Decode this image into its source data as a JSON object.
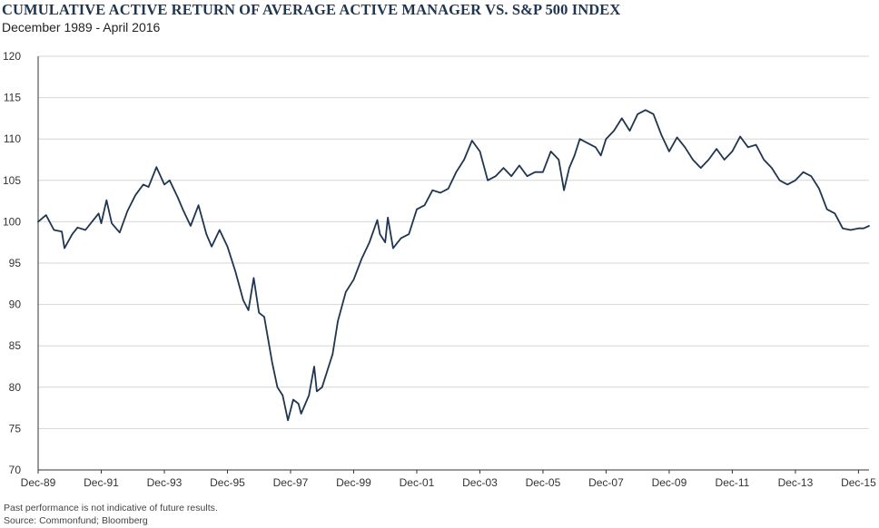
{
  "chart_data": {
    "type": "line",
    "title": "CUMULATIVE ACTIVE RETURN OF AVERAGE ACTIVE MANAGER VS. S&P 500 INDEX",
    "subtitle": "December 1989 - April 2016",
    "xlabel": "",
    "ylabel": "",
    "ylim": [
      70,
      120
    ],
    "y_ticks": [
      70,
      75,
      80,
      85,
      90,
      95,
      100,
      105,
      110,
      115,
      120
    ],
    "xlim": [
      "1989-12",
      "2016-04"
    ],
    "x_ticks": [
      {
        "date": "1989-12",
        "label": "Dec-89"
      },
      {
        "date": "1991-12",
        "label": "Dec-91"
      },
      {
        "date": "1993-12",
        "label": "Dec-93"
      },
      {
        "date": "1995-12",
        "label": "Dec-95"
      },
      {
        "date": "1997-12",
        "label": "Dec-97"
      },
      {
        "date": "1999-12",
        "label": "Dec-99"
      },
      {
        "date": "2001-12",
        "label": "Dec-01"
      },
      {
        "date": "2003-12",
        "label": "Dec-03"
      },
      {
        "date": "2005-12",
        "label": "Dec-05"
      },
      {
        "date": "2007-12",
        "label": "Dec-07"
      },
      {
        "date": "2009-12",
        "label": "Dec-09"
      },
      {
        "date": "2011-12",
        "label": "Dec-11"
      },
      {
        "date": "2013-12",
        "label": "Dec-13"
      },
      {
        "date": "2015-12",
        "label": "Dec-15"
      }
    ],
    "grid": true,
    "line_color": "#1f3550",
    "series": [
      {
        "points": [
          [
            "1989-12",
            100.0
          ],
          [
            "1990-03",
            100.8
          ],
          [
            "1990-06",
            99.0
          ],
          [
            "1990-09",
            98.8
          ],
          [
            "1990-10",
            96.8
          ],
          [
            "1991-01",
            98.5
          ],
          [
            "1991-03",
            99.3
          ],
          [
            "1991-06",
            99.0
          ],
          [
            "1991-09",
            100.2
          ],
          [
            "1991-11",
            101.0
          ],
          [
            "1991-12",
            99.8
          ],
          [
            "1992-02",
            102.6
          ],
          [
            "1992-04",
            99.8
          ],
          [
            "1992-07",
            98.7
          ],
          [
            "1992-10",
            101.3
          ],
          [
            "1993-01",
            103.2
          ],
          [
            "1993-04",
            104.5
          ],
          [
            "1993-06",
            104.2
          ],
          [
            "1993-09",
            106.6
          ],
          [
            "1993-12",
            104.5
          ],
          [
            "1994-02",
            105.0
          ],
          [
            "1994-05",
            103.0
          ],
          [
            "1994-07",
            101.5
          ],
          [
            "1994-10",
            99.5
          ],
          [
            "1995-01",
            102.0
          ],
          [
            "1995-04",
            98.5
          ],
          [
            "1995-06",
            97.0
          ],
          [
            "1995-09",
            99.0
          ],
          [
            "1995-12",
            97.0
          ],
          [
            "1996-03",
            94.0
          ],
          [
            "1996-06",
            90.5
          ],
          [
            "1996-08",
            89.3
          ],
          [
            "1996-10",
            93.2
          ],
          [
            "1996-12",
            89.0
          ],
          [
            "1997-02",
            88.5
          ],
          [
            "1997-05",
            83.0
          ],
          [
            "1997-07",
            80.0
          ],
          [
            "1997-09",
            79.0
          ],
          [
            "1997-11",
            76.0
          ],
          [
            "1998-01",
            78.5
          ],
          [
            "1998-03",
            78.0
          ],
          [
            "1998-04",
            76.8
          ],
          [
            "1998-07",
            79.0
          ],
          [
            "1998-09",
            82.5
          ],
          [
            "1998-10",
            79.5
          ],
          [
            "1998-12",
            80.0
          ],
          [
            "1999-03",
            83.0
          ],
          [
            "1999-04",
            84.0
          ],
          [
            "1999-06",
            88.0
          ],
          [
            "1999-09",
            91.5
          ],
          [
            "1999-12",
            93.0
          ],
          [
            "2000-03",
            95.5
          ],
          [
            "2000-06",
            97.5
          ],
          [
            "2000-09",
            100.2
          ],
          [
            "2000-10",
            98.5
          ],
          [
            "2000-12",
            97.5
          ],
          [
            "2001-01",
            100.5
          ],
          [
            "2001-03",
            96.8
          ],
          [
            "2001-06",
            98.0
          ],
          [
            "2001-09",
            98.5
          ],
          [
            "2001-12",
            101.5
          ],
          [
            "2002-03",
            102.0
          ],
          [
            "2002-06",
            103.8
          ],
          [
            "2002-09",
            103.5
          ],
          [
            "2002-12",
            104.0
          ],
          [
            "2003-03",
            106.0
          ],
          [
            "2003-06",
            107.5
          ],
          [
            "2003-09",
            109.8
          ],
          [
            "2003-12",
            108.5
          ],
          [
            "2004-03",
            105.0
          ],
          [
            "2004-06",
            105.5
          ],
          [
            "2004-09",
            106.5
          ],
          [
            "2004-12",
            105.5
          ],
          [
            "2005-03",
            106.8
          ],
          [
            "2005-06",
            105.5
          ],
          [
            "2005-09",
            106.0
          ],
          [
            "2005-12",
            106.0
          ],
          [
            "2006-03",
            108.5
          ],
          [
            "2006-06",
            107.5
          ],
          [
            "2006-08",
            103.8
          ],
          [
            "2006-10",
            106.5
          ],
          [
            "2006-12",
            108.0
          ],
          [
            "2007-02",
            110.0
          ],
          [
            "2007-05",
            109.5
          ],
          [
            "2007-08",
            109.0
          ],
          [
            "2007-10",
            108.0
          ],
          [
            "2007-12",
            110.0
          ],
          [
            "2008-03",
            111.0
          ],
          [
            "2008-06",
            112.5
          ],
          [
            "2008-09",
            111.0
          ],
          [
            "2008-12",
            113.0
          ],
          [
            "2009-03",
            113.5
          ],
          [
            "2009-06",
            113.0
          ],
          [
            "2009-09",
            110.5
          ],
          [
            "2009-12",
            108.5
          ],
          [
            "2010-03",
            110.2
          ],
          [
            "2010-06",
            109.0
          ],
          [
            "2010-09",
            107.5
          ],
          [
            "2010-12",
            106.5
          ],
          [
            "2011-03",
            107.5
          ],
          [
            "2011-06",
            108.8
          ],
          [
            "2011-09",
            107.5
          ],
          [
            "2011-12",
            108.5
          ],
          [
            "2012-03",
            110.3
          ],
          [
            "2012-06",
            109.0
          ],
          [
            "2012-09",
            109.3
          ],
          [
            "2012-12",
            107.5
          ],
          [
            "2013-03",
            106.5
          ],
          [
            "2013-06",
            105.0
          ],
          [
            "2013-09",
            104.5
          ],
          [
            "2013-12",
            105.0
          ],
          [
            "2014-03",
            106.0
          ],
          [
            "2014-06",
            105.5
          ],
          [
            "2014-09",
            104.0
          ],
          [
            "2014-12",
            101.5
          ],
          [
            "2015-03",
            101.0
          ],
          [
            "2015-06",
            99.2
          ],
          [
            "2015-09",
            99.0
          ],
          [
            "2015-12",
            99.2
          ],
          [
            "2016-02",
            99.2
          ],
          [
            "2016-04",
            99.5
          ]
        ]
      }
    ]
  },
  "footnotes": {
    "disclaimer": "Past performance is not indicative of future results.",
    "source": "Source: Commonfund; Bloomberg"
  }
}
